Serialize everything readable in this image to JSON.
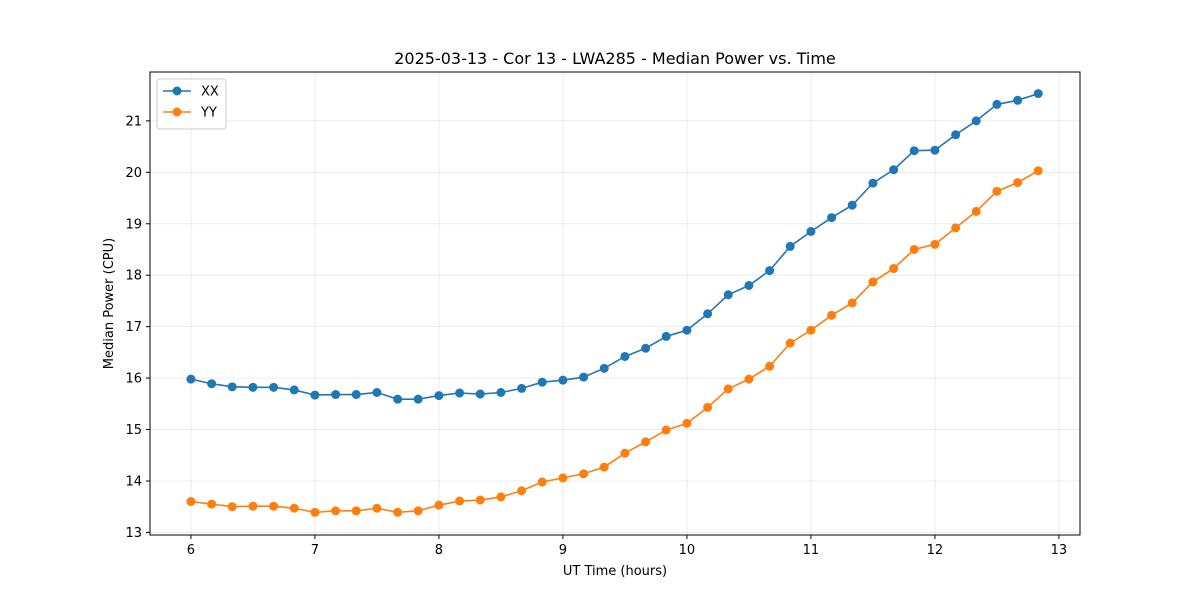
{
  "chart_data": {
    "type": "line",
    "title": "2025-03-13 - Cor 13 - LWA285 - Median Power vs. Time",
    "xlabel": "UT Time (hours)",
    "ylabel": "Median Power (CPU)",
    "xlim": [
      5.67,
      13.17
    ],
    "ylim": [
      12.95,
      21.95
    ],
    "xticks": [
      6,
      7,
      8,
      9,
      10,
      11,
      12,
      13
    ],
    "yticks": [
      13,
      14,
      15,
      16,
      17,
      18,
      19,
      20,
      21
    ],
    "grid": true,
    "legend_position": "upper-left",
    "x": [
      6.0,
      6.167,
      6.333,
      6.5,
      6.667,
      6.833,
      7.0,
      7.167,
      7.333,
      7.5,
      7.667,
      7.833,
      8.0,
      8.167,
      8.333,
      8.5,
      8.667,
      8.833,
      9.0,
      9.167,
      9.333,
      9.5,
      9.667,
      9.833,
      10.0,
      10.167,
      10.333,
      10.5,
      10.667,
      10.833,
      11.0,
      11.167,
      11.333,
      11.5,
      11.667,
      11.833,
      12.0,
      12.167,
      12.333,
      12.5,
      12.667,
      12.833
    ],
    "series": [
      {
        "name": "XX",
        "color": "#1f77b4",
        "values": [
          15.98,
          15.89,
          15.83,
          15.82,
          15.82,
          15.77,
          15.67,
          15.68,
          15.68,
          15.72,
          15.59,
          15.59,
          15.66,
          15.71,
          15.69,
          15.72,
          15.8,
          15.92,
          15.96,
          16.02,
          16.19,
          16.42,
          16.58,
          16.81,
          16.93,
          17.25,
          17.62,
          17.8,
          18.09,
          18.56,
          18.85,
          19.12,
          19.36,
          19.79,
          20.05,
          20.42,
          20.43,
          20.73,
          21.0,
          21.32,
          21.4,
          21.53
        ]
      },
      {
        "name": "YY",
        "color": "#ff7f0e",
        "values": [
          13.6,
          13.55,
          13.5,
          13.51,
          13.51,
          13.47,
          13.39,
          13.42,
          13.42,
          13.47,
          13.39,
          13.42,
          13.53,
          13.61,
          13.63,
          13.69,
          13.81,
          13.98,
          14.06,
          14.14,
          14.27,
          14.54,
          14.76,
          14.99,
          15.12,
          15.43,
          15.79,
          15.98,
          16.23,
          16.68,
          16.93,
          17.22,
          17.46,
          17.87,
          18.13,
          18.5,
          18.6,
          18.92,
          19.24,
          19.63,
          19.8,
          20.03
        ]
      }
    ]
  }
}
